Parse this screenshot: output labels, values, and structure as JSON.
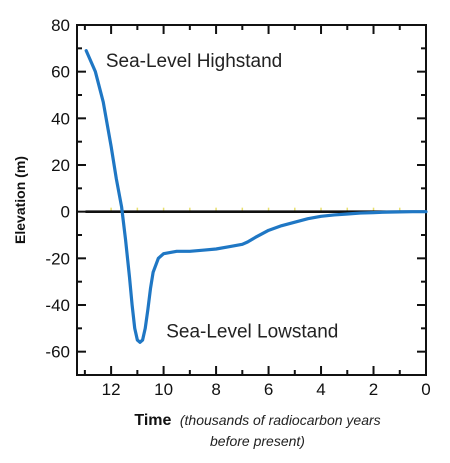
{
  "chart_data": {
    "type": "line",
    "title": "",
    "xlabel_main": "Time",
    "xlabel_sub_line1": "(thousands of radiocarbon years",
    "xlabel_sub_line2": "before present)",
    "ylabel": "Elevation (m)",
    "xlim": [
      13.3,
      0
    ],
    "ylim": [
      -70,
      80
    ],
    "x_ticks": [
      12,
      10,
      8,
      6,
      4,
      2,
      0
    ],
    "y_ticks": [
      80,
      60,
      40,
      20,
      0,
      -20,
      -40,
      -60
    ],
    "grid": false,
    "annotations": [
      {
        "text": "Sea-Level Highstand",
        "x": 12.2,
        "y": 62
      },
      {
        "text": "Sea-Level Lowstand",
        "x": 9.9,
        "y": -54
      }
    ],
    "series": [
      {
        "color": "#1f77c4",
        "x": [
          12.95,
          12.6,
          12.3,
          12.0,
          11.8,
          11.6,
          11.45,
          11.3,
          11.2,
          11.1,
          11.0,
          10.9,
          10.8,
          10.7,
          10.6,
          10.5,
          10.4,
          10.2,
          10.0,
          9.5,
          9.0,
          8.5,
          8.0,
          7.5,
          7.0,
          6.8,
          6.5,
          6.0,
          5.5,
          5.0,
          4.5,
          4.0,
          3.5,
          3.0,
          2.5,
          2.0,
          1.5,
          1.0,
          0.5,
          0.0
        ],
        "y": [
          69,
          60,
          47,
          28,
          14,
          2,
          -12,
          -28,
          -40,
          -50,
          -55,
          -56,
          -55,
          -50,
          -42,
          -33,
          -26,
          -20,
          -18,
          -17,
          -17,
          -16.5,
          -16,
          -15,
          -14,
          -13,
          -11,
          -8,
          -6,
          -4.5,
          -3,
          -2,
          -1.4,
          -1,
          -0.6,
          -0.4,
          -0.2,
          -0.1,
          0,
          0
        ]
      },
      {
        "color": "#111111",
        "x": [
          12.95,
          0
        ],
        "y": [
          0,
          0
        ]
      }
    ]
  }
}
